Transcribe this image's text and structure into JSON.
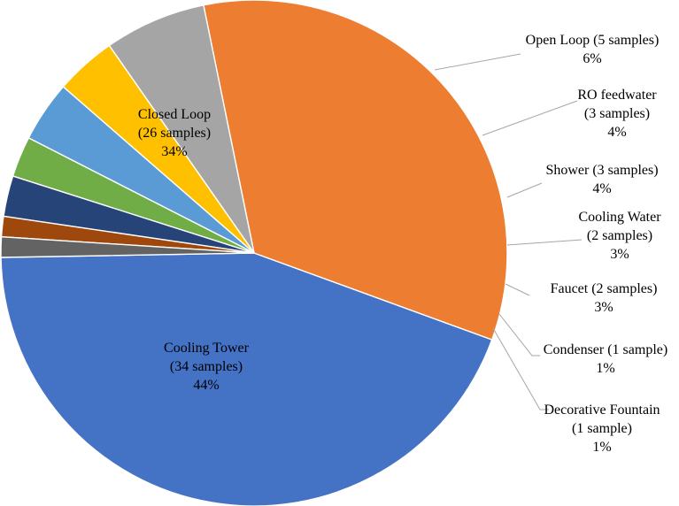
{
  "chart_data": {
    "type": "pie",
    "title": "",
    "series": [
      {
        "name": "Cooling Tower",
        "samples_label": "(34 samples)",
        "value": 34,
        "percent_label": "44%",
        "color": "#4472C4",
        "label_position": "inside"
      },
      {
        "name": "Closed Loop",
        "samples_label": "(26 samples)",
        "value": 26,
        "percent_label": "34%",
        "color": "#ED7D31",
        "label_position": "inside"
      },
      {
        "name": "Open Loop",
        "samples_label": "(5 samples)",
        "value": 5,
        "percent_label": "6%",
        "color": "#A5A5A5",
        "label_position": "outside"
      },
      {
        "name": "RO feedwater",
        "samples_label": "(3 samples)",
        "value": 3,
        "percent_label": "4%",
        "color": "#FFC000",
        "label_position": "outside"
      },
      {
        "name": "Shower",
        "samples_label": "(3 samples)",
        "value": 3,
        "percent_label": "4%",
        "color": "#5B9BD5",
        "label_position": "outside"
      },
      {
        "name": "Cooling Water",
        "samples_label": "(2 samples)",
        "value": 2,
        "percent_label": "3%",
        "color": "#70AD47",
        "label_position": "outside"
      },
      {
        "name": "Faucet",
        "samples_label": "(2 samples)",
        "value": 2,
        "percent_label": "3%",
        "color": "#264478",
        "label_position": "outside"
      },
      {
        "name": "Condenser",
        "samples_label": "(1 sample)",
        "value": 1,
        "percent_label": "1%",
        "color": "#9E480E",
        "label_position": "outside"
      },
      {
        "name": "Decorative Fountain",
        "samples_label": "(1 sample)",
        "value": 1,
        "percent_label": "1%",
        "color": "#636363",
        "label_position": "outside"
      }
    ],
    "labels": [
      {
        "lines": [
          "Closed Loop",
          "(26 samples)",
          "34%"
        ]
      },
      {
        "lines": [
          "Cooling Tower",
          "(34 samples)",
          "44%"
        ]
      },
      {
        "lines": [
          "Open Loop (5 samples)",
          "6%"
        ]
      },
      {
        "lines": [
          "RO feedwater",
          "(3 samples)",
          "4%"
        ]
      },
      {
        "lines": [
          "Shower (3 samples)",
          "4%"
        ]
      },
      {
        "lines": [
          "Cooling Water",
          "(2 samples)",
          "3%"
        ]
      },
      {
        "lines": [
          "Faucet (2 samples)",
          "3%"
        ]
      },
      {
        "lines": [
          "Condenser (1 sample)",
          "1%"
        ]
      },
      {
        "lines": [
          "Decorative Fountain",
          "(1 sample)",
          "1%"
        ]
      }
    ],
    "colors": {
      "background": "#FFFFFF",
      "leader_line": "#A6A6A6",
      "text": "#000000"
    }
  }
}
